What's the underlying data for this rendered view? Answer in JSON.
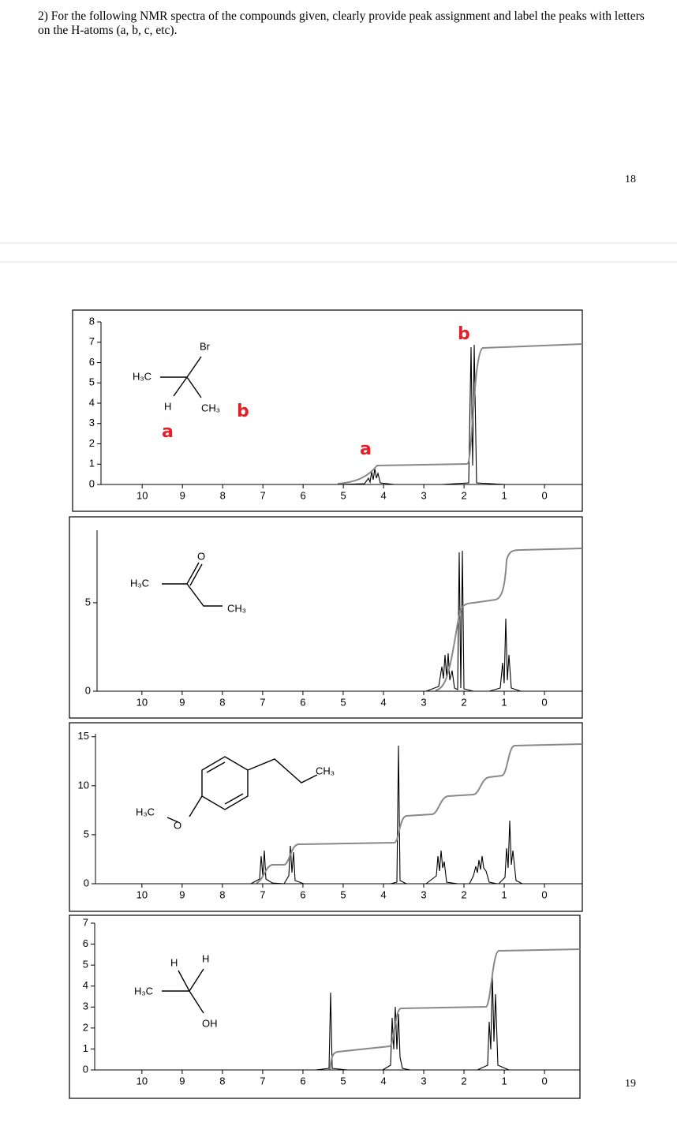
{
  "question": "2) For the following NMR spectra of the compounds given, clearly provide peak assignment and label the peaks with letters on the H-atoms (a, b, c, etc).",
  "page_numbers": [
    "18",
    "19"
  ],
  "spectra": [
    {
      "ylim": [
        0,
        8
      ],
      "yticks": [
        0,
        1,
        2,
        3,
        4,
        5,
        6,
        7,
        8
      ],
      "xlim": [
        11.73,
        -0.94
      ],
      "xticks": [
        10,
        9,
        8,
        7,
        6,
        5,
        4,
        3,
        2,
        1,
        0
      ],
      "structure": [
        "H₃C",
        "Br",
        "H",
        "CH₃"
      ],
      "annotations": [
        "b",
        "a",
        "b",
        "a"
      ]
    },
    {
      "ylim": [
        0,
        9.1
      ],
      "yticks": [
        0,
        5
      ],
      "xlim": [
        11.8,
        -0.94
      ],
      "xticks": [
        10,
        9,
        8,
        7,
        6,
        5,
        4,
        3,
        2,
        1,
        0
      ],
      "structure": [
        "H₃C",
        "O",
        "CH₃"
      ]
    },
    {
      "ylim": [
        0,
        15.3
      ],
      "yticks": [
        0,
        5,
        10,
        15
      ],
      "xlim": [
        11.8,
        -0.94
      ],
      "xticks": [
        10,
        9,
        8,
        7,
        6,
        5,
        4,
        3,
        2,
        1,
        0
      ],
      "structure": [
        "H₃C",
        "O",
        "CH₃"
      ]
    },
    {
      "ylim": [
        0,
        7
      ],
      "yticks": [
        0,
        1,
        2,
        3,
        4,
        5,
        6,
        7
      ],
      "xlim": [
        11.8,
        -0.88
      ],
      "xticks": [
        10,
        9,
        8,
        7,
        6,
        5,
        4,
        3,
        2,
        1,
        0
      ],
      "structure": [
        "H",
        "H",
        "H₃C",
        "OH"
      ]
    }
  ]
}
